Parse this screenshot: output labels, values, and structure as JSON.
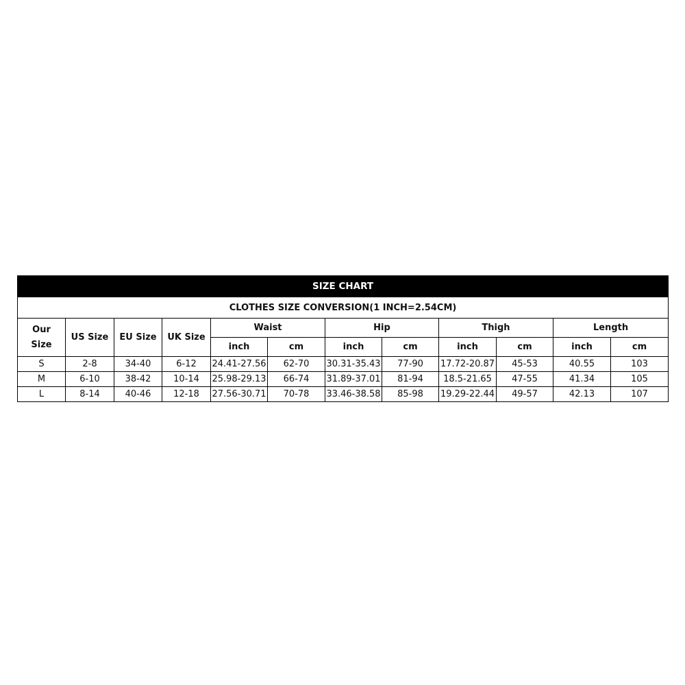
{
  "title": "SIZE CHART",
  "subtitle": "CLOTHES SIZE CONVERSION(1 INCH=2.54CM)",
  "headers": {
    "our_size": "Our Size",
    "us_size": "US Size",
    "eu_size": "EU Size",
    "uk_size": "UK Size",
    "waist": "Waist",
    "hip": "Hip",
    "thigh": "Thigh",
    "length": "Length",
    "inch": "inch",
    "cm": "cm"
  },
  "rows": [
    [
      "S",
      "2-8",
      "34-40",
      "6-12",
      "24.41-27.56",
      "62-70",
      "30.31-35.43",
      "77-90",
      "17.72-20.87",
      "45-53",
      "40.55",
      "103"
    ],
    [
      "M",
      "6-10",
      "38-42",
      "10-14",
      "25.98-29.13",
      "66-74",
      "31.89-37.01",
      "81-94",
      "18.5-21.65",
      "47-55",
      "41.34",
      "105"
    ],
    [
      "L",
      "8-14",
      "40-46",
      "12-18",
      "27.56-30.71",
      "70-78",
      "33.46-38.58",
      "85-98",
      "19.29-22.44",
      "49-57",
      "42.13",
      "107"
    ]
  ]
}
